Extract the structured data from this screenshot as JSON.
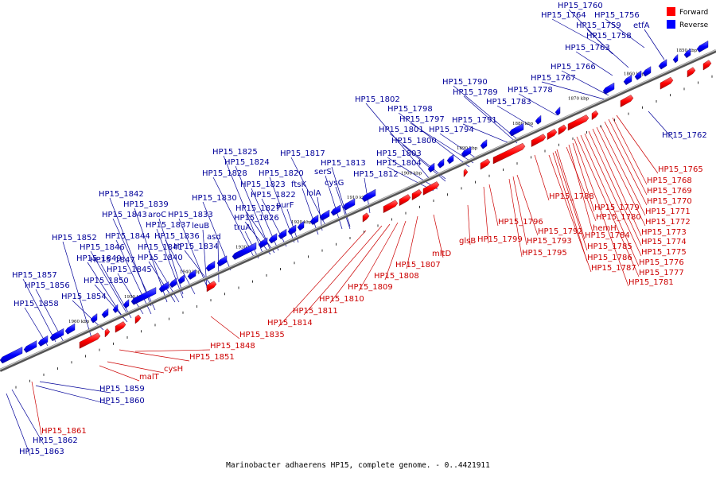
{
  "caption": "Marinobacter adhaerens HP15, complete genome. - 0..4421911",
  "legend": {
    "forward": {
      "label": "Forward",
      "color": "#ff0000"
    },
    "reverse": {
      "label": "Reverse",
      "color": "#0000ff"
    }
  },
  "colors": {
    "forward_label": "#cc0000",
    "reverse_label": "#000099",
    "backbone": "#888888"
  },
  "ticks": [
    "1850 kbp",
    "1860 kbp",
    "1870 kbp",
    "1880 kbp",
    "1890 kbp",
    "1900 kbp",
    "1910 kbp",
    "1920 kbp",
    "1930 kbp",
    "1940 kbp",
    "1950 kbp",
    "1960 kbp"
  ],
  "reverse_labels": [
    "HP15_1760",
    "HP15_1764",
    "HP15_1756",
    "HP15_1759",
    "etfA",
    "HP15_1758",
    "HP15_1763",
    "HP15_1766",
    "HP15_1767",
    "HP15_1778",
    "HP15_1790",
    "HP15_1789",
    "HP15_1783",
    "HP15_1802",
    "HP15_1798",
    "HP15_1797",
    "HP15_1791",
    "HP15_1801",
    "HP15_1794",
    "HP15_1800",
    "HP15_1803",
    "HP15_1804",
    "HP15_1812",
    "HP15_1825",
    "HP15_1824",
    "HP15_1817",
    "HP15_1813",
    "HP15_1828",
    "HP15_1820",
    "serS",
    "HP15_1823",
    "ftsK",
    "cysG",
    "HP15_1822",
    "lolA",
    "HP15_1830",
    "purF",
    "HP15_1827",
    "HP15_1826",
    "truA",
    "HP15_1842",
    "HP15_1839",
    "HP15_1843",
    "aroC",
    "HP15_1833",
    "HP15_1837",
    "leuB",
    "HP15_1852",
    "HP15_1844",
    "HP15_1836",
    "asd",
    "HP15_1846",
    "HP15_1841",
    "HP15_1834",
    "HP15_1849",
    "HP15_1847",
    "HP15_1840",
    "HP15_1845",
    "HP15_1857",
    "HP15_1856",
    "HP15_1850",
    "HP15_1858",
    "HP15_1854",
    "HP15_1859",
    "HP15_1860",
    "HP15_1862",
    "HP15_1863",
    "HP15_1762"
  ],
  "forward_labels": [
    "HP15_1765",
    "HP15_1768",
    "HP15_1769",
    "HP15_1770",
    "HP15_1771",
    "HP15_1772",
    "HP15_1773",
    "HP15_1774",
    "HP15_1775",
    "HP15_1776",
    "HP15_1777",
    "HP15_1781",
    "HP15_1788",
    "HP15_1779",
    "hemH",
    "HP15_1780",
    "HP15_1784",
    "HP15_1785",
    "HP15_1786",
    "HP15_1787",
    "HP15_1792",
    "HP15_1793",
    "HP15_1795",
    "HP15_1796",
    "HP15_1799",
    "glsB",
    "mltD",
    "HP15_1807",
    "HP15_1808",
    "HP15_1809",
    "HP15_1810",
    "HP15_1811",
    "HP15_1814",
    "HP15_1835",
    "HP15_1848",
    "HP15_1851",
    "cysH",
    "malT",
    "HP15_1861"
  ]
}
